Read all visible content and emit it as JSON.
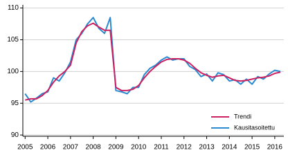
{
  "chart_data": {
    "type": "line",
    "x": [
      2005,
      2005.25,
      2005.5,
      2005.75,
      2006,
      2006.25,
      2006.5,
      2006.75,
      2007,
      2007.25,
      2007.5,
      2007.75,
      2008,
      2008.25,
      2008.5,
      2008.75,
      2009,
      2009.25,
      2009.5,
      2009.75,
      2010,
      2010.25,
      2010.5,
      2010.75,
      2011,
      2011.25,
      2011.5,
      2011.75,
      2012,
      2012.25,
      2012.5,
      2012.75,
      2013,
      2013.25,
      2013.5,
      2013.75,
      2014,
      2014.25,
      2014.5,
      2014.75,
      2015,
      2015.25,
      2015.5,
      2015.75,
      2016,
      2016.25
    ],
    "series": [
      {
        "name": "Trendi",
        "color": "#cc2060",
        "values": [
          95.5,
          95.7,
          95.7,
          96.2,
          97.0,
          98.3,
          99.3,
          100.0,
          101.0,
          104.5,
          106.3,
          107.2,
          107.6,
          107.0,
          106.5,
          106.5,
          97.5,
          97.0,
          97.0,
          97.2,
          97.8,
          99.0,
          100.0,
          100.8,
          101.5,
          101.9,
          102.0,
          102.0,
          101.8,
          101.3,
          100.5,
          99.8,
          99.4,
          99.1,
          99.3,
          99.4,
          99.0,
          98.6,
          98.5,
          98.6,
          98.8,
          99.0,
          99.1,
          99.3,
          99.7,
          99.9
        ]
      },
      {
        "name": "Kausitasoitettu",
        "color": "#2a8ad0",
        "values": [
          96.5,
          95.2,
          95.8,
          96.5,
          96.8,
          99.0,
          98.5,
          99.8,
          101.5,
          105.0,
          106.0,
          107.5,
          108.5,
          106.8,
          106.0,
          108.5,
          97.0,
          96.8,
          96.5,
          97.5,
          97.5,
          99.5,
          100.5,
          101.0,
          101.8,
          102.3,
          101.8,
          102.0,
          102.0,
          100.8,
          100.3,
          99.2,
          99.6,
          98.5,
          99.8,
          99.5,
          98.5,
          98.7,
          98.0,
          98.8,
          98.0,
          99.2,
          98.8,
          99.6,
          100.2,
          100.0
        ]
      }
    ],
    "xlim": [
      2004.9,
      2016.4
    ],
    "xticks": [
      2005,
      2006,
      2007,
      2008,
      2009,
      2010,
      2011,
      2012,
      2013,
      2014,
      2015,
      2016
    ],
    "ylim": [
      89.8,
      110.5
    ],
    "yticks": [
      90,
      95,
      100,
      105,
      110
    ],
    "grid": true,
    "legend": "lower right"
  }
}
